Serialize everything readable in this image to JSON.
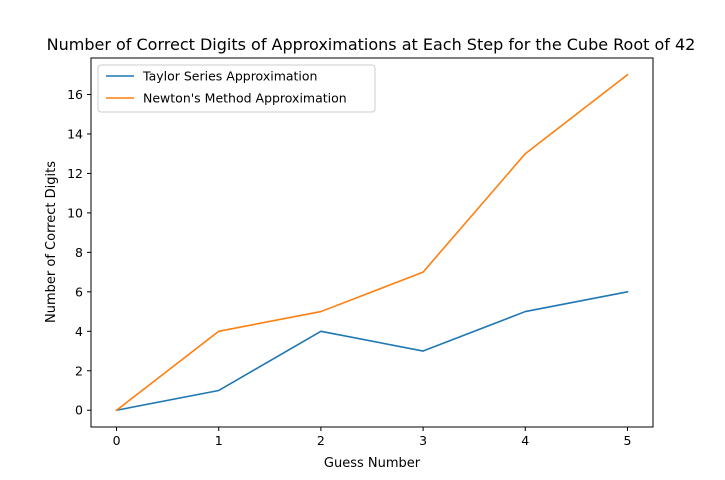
{
  "chart_data": {
    "type": "line",
    "title": "Number of Correct Digits of Approximations at Each Step for the Cube Root of 42",
    "xlabel": "Guess Number",
    "ylabel": "Number of Correct Digits",
    "x": [
      0,
      1,
      2,
      3,
      4,
      5
    ],
    "xlim": [
      -0.25,
      5.25
    ],
    "ylim": [
      -0.85,
      17.85
    ],
    "xticks": [
      0,
      1,
      2,
      3,
      4,
      5
    ],
    "yticks": [
      0,
      2,
      4,
      6,
      8,
      10,
      12,
      14,
      16
    ],
    "grid": false,
    "legend_position": "top-left",
    "series": [
      {
        "name": "Taylor Series Approximation",
        "color": "#1f77b4",
        "values": [
          0,
          1,
          4,
          3,
          5,
          6
        ]
      },
      {
        "name": "Newton's Method Approximation",
        "color": "#ff7f0e",
        "values": [
          0,
          4,
          5,
          7,
          13,
          17
        ]
      }
    ]
  }
}
